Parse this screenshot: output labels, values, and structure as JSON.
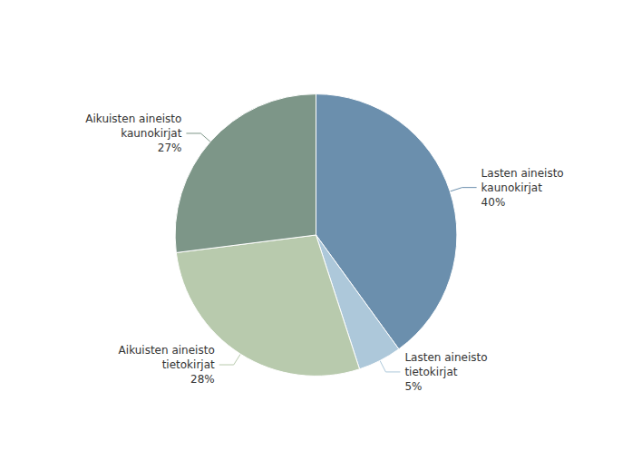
{
  "chart_data": {
    "type": "pie",
    "categories": [
      "Lasten aineisto\nkaunokirjat\n40%",
      "Lasten aineisto\ntietokirjat\n5%",
      "Aikuisten aineisto\ntietokirjat\n28%",
      "Aikuisten aineisto\nkaunokirjat\n27%"
    ],
    "values": [
      40,
      5,
      28,
      27
    ],
    "colors": [
      "#6b8fad",
      "#adc8da",
      "#b8caad",
      "#7d9688"
    ]
  }
}
